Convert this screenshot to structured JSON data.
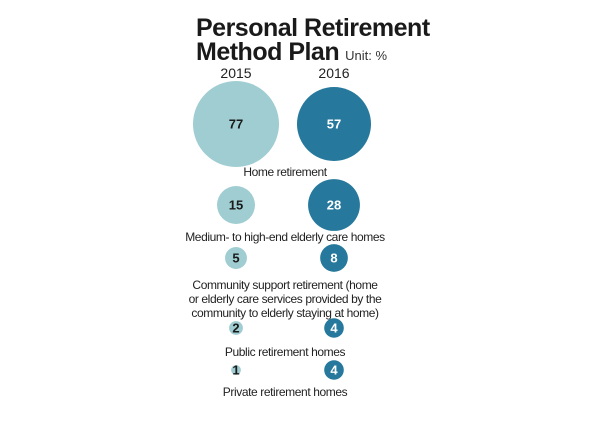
{
  "chart_data": {
    "type": "bubble",
    "title_line1": "Personal Retirement",
    "title_line2": "Method Plan",
    "unit": "Unit: %",
    "series": [
      {
        "name": "2015",
        "color": "#9fcdd2",
        "label_color": "#1a1a1a",
        "values": [
          77,
          15,
          5,
          2,
          1
        ]
      },
      {
        "name": "2016",
        "color": "#26799c",
        "label_color": "#ffffff",
        "values": [
          57,
          28,
          8,
          4,
          4
        ]
      }
    ],
    "categories": [
      [
        "Home retirement"
      ],
      [
        "Medium- to high-end elderly care homes"
      ],
      [
        "Community support retirement (home",
        "or elderly care services provided by the",
        "community to elderly staying at home)"
      ],
      [
        "Public retirement homes"
      ],
      [
        "Private retirement homes"
      ]
    ]
  }
}
